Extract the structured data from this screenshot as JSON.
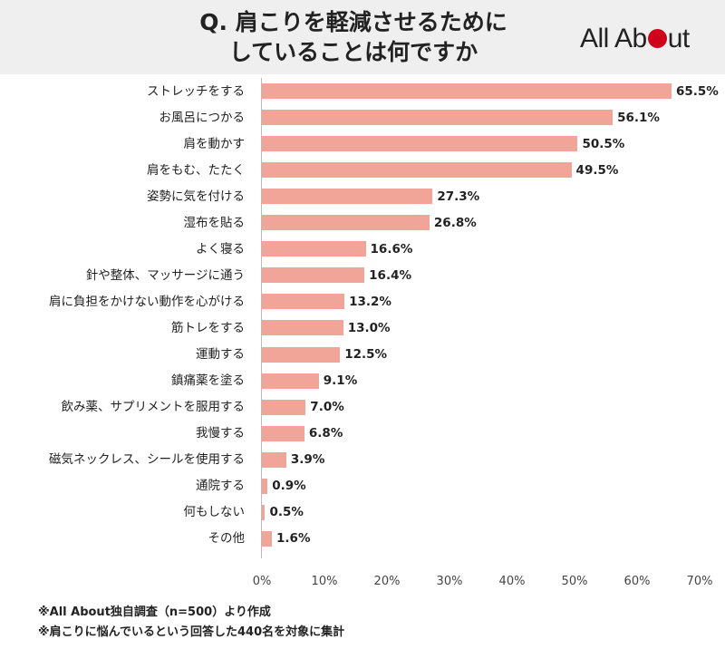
{
  "header": {
    "title_line1": "Q. 肩こりを軽減させるために",
    "title_line2": "していることは何ですか",
    "logo": "All About"
  },
  "chart_data": {
    "type": "bar",
    "orientation": "horizontal",
    "title": "Q. 肩こりを軽減させるために していることは何ですか",
    "categories": [
      "ストレッチをする",
      "お風呂につかる",
      "肩を動かす",
      "肩をもむ、たたく",
      "姿勢に気を付ける",
      "湿布を貼る",
      "よく寝る",
      "針や整体、マッサージに通う",
      "肩に負担をかけない動作を心がける",
      "筋トレをする",
      "運動する",
      "鎮痛薬を塗る",
      "飲み薬、サプリメントを服用する",
      "我慢する",
      "磁気ネックレス、シールを使用する",
      "通院する",
      "何もしない",
      "その他"
    ],
    "values": [
      65.5,
      56.1,
      50.5,
      49.5,
      27.3,
      26.8,
      16.6,
      16.4,
      13.2,
      13.0,
      12.5,
      9.1,
      7.0,
      6.8,
      3.9,
      0.9,
      0.5,
      1.6
    ],
    "value_labels": [
      "65.5%",
      "56.1%",
      "50.5%",
      "49.5%",
      "27.3%",
      "26.8%",
      "16.6%",
      "16.4%",
      "13.2%",
      "13.0%",
      "12.5%",
      "9.1%",
      "7.0%",
      "6.8%",
      "3.9%",
      "0.9%",
      "0.5%",
      "1.6%"
    ],
    "xlim": [
      0,
      70
    ],
    "x_ticks": [
      "0%",
      "10%",
      "20%",
      "30%",
      "40%",
      "50%",
      "60%",
      "70%"
    ],
    "bar_color": "#f1a599",
    "xlabel": "",
    "ylabel": ""
  },
  "footnotes": {
    "line1": "※All About独自調査（n=500）より作成",
    "line2": "※肩こりに悩んでいるという回答した440名を対象に集計"
  },
  "colors": {
    "header_bg": "#efefef",
    "logo_dot": "#d0021b"
  }
}
